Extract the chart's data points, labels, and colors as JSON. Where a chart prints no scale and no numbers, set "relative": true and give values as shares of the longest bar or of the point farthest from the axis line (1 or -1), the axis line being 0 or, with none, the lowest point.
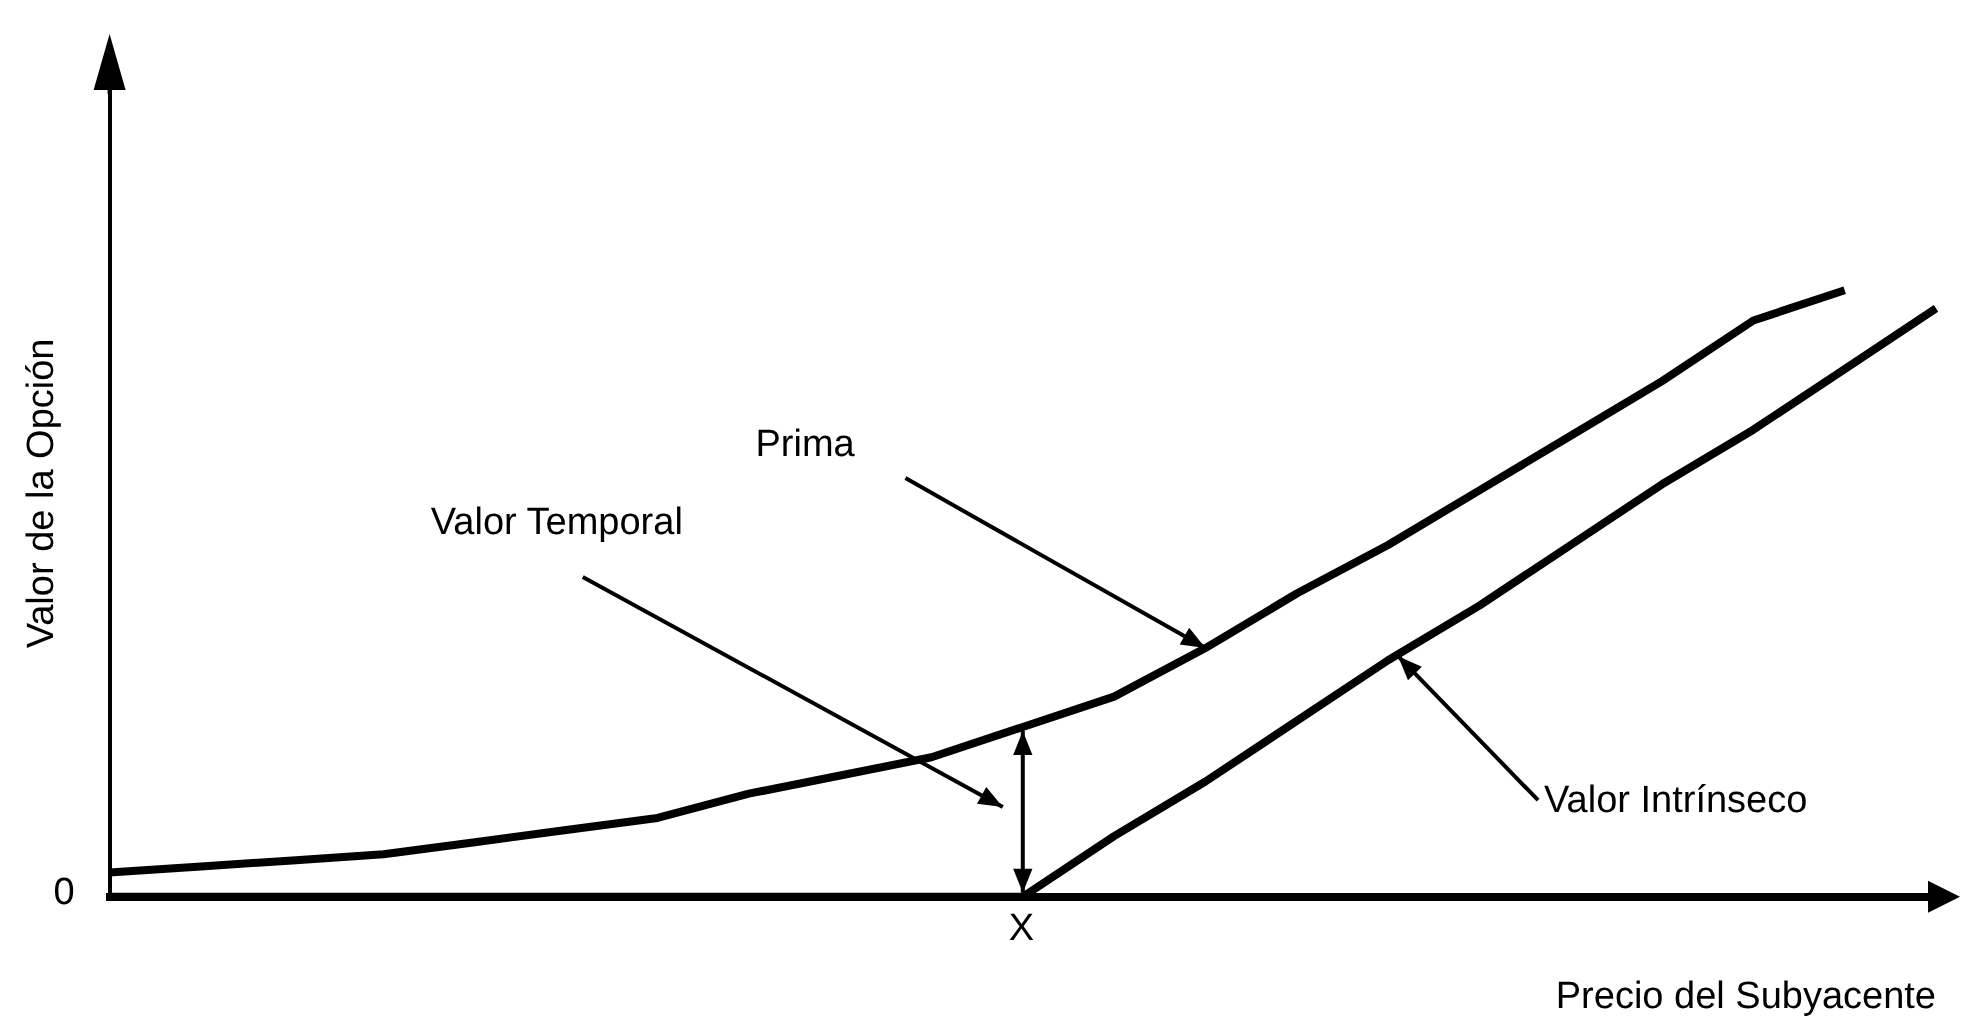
{
  "chart_data": {
    "type": "line",
    "relative": true,
    "xlabel": "Precio del Subyacente",
    "ylabel": "Valor de la Opción",
    "categories": [
      null,
      null,
      null,
      null,
      null,
      null,
      null,
      null,
      null,
      null,
      null,
      null,
      null,
      null,
      null,
      null,
      null,
      null,
      null,
      null,
      null
    ],
    "series": [
      {
        "color": "#000000",
        "values": [
          0.04,
          0.05,
          0.06,
          0.07,
          0.09,
          0.11,
          0.13,
          0.17,
          0.2,
          0.23,
          0.28,
          0.33,
          0.41,
          0.5,
          0.58,
          0.67,
          0.76,
          0.85,
          0.95,
          1,
          null
        ]
      },
      {
        "color": "#000000",
        "values": [
          0,
          0,
          0,
          0,
          0,
          0,
          0,
          0,
          0,
          0,
          0,
          0.1,
          0.19,
          0.29,
          0.39,
          0.48,
          0.58,
          0.68,
          0.77,
          0.87,
          0.97
        ]
      }
    ],
    "annotations": [
      "Valor Temporal",
      "0",
      "X",
      "Prima",
      "Valor Intrínseco"
    ],
    "legend": false,
    "grid": false,
    "marker": "none",
    "line_style": "solid"
  }
}
